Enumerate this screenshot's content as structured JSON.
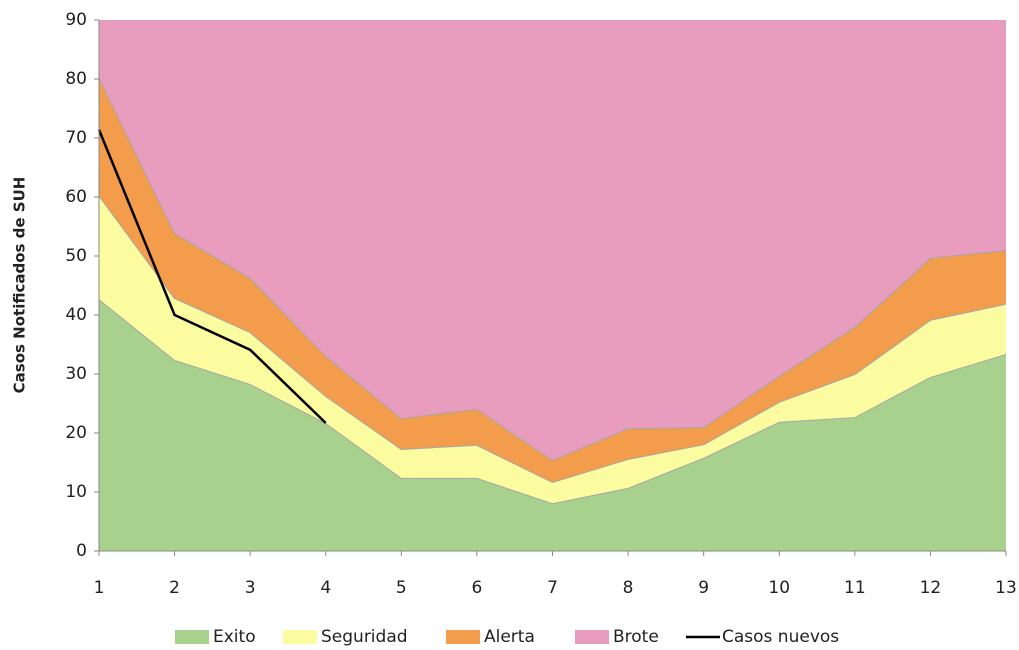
{
  "chart_data": {
    "type": "area",
    "stacked": true,
    "y_label": "Casos Notificados de SUH",
    "x": [
      1,
      2,
      3,
      4,
      5,
      6,
      7,
      8,
      9,
      10,
      11,
      12,
      13
    ],
    "xlim": [
      1,
      13
    ],
    "xticks": [
      1,
      2,
      3,
      4,
      5,
      6,
      7,
      8,
      9,
      10,
      11,
      12,
      13
    ],
    "ylim": [
      0,
      90
    ],
    "yticks": [
      0,
      10,
      20,
      30,
      40,
      50,
      60,
      70,
      80,
      90
    ],
    "series": [
      {
        "name": "Exito",
        "color": "#a9d18e",
        "values": [
          42.7,
          32.4,
          28.3,
          21.7,
          12.4,
          12.4,
          8.1,
          10.7,
          15.8,
          21.9,
          22.7,
          29.5,
          33.4
        ]
      },
      {
        "name": "Seguridad",
        "color": "#fbfba0",
        "values": [
          17.6,
          10.5,
          8.8,
          4.6,
          4.9,
          5.6,
          3.6,
          4.9,
          2.3,
          3.4,
          7.3,
          9.7,
          8.5
        ]
      },
      {
        "name": "Alerta",
        "color": "#f39c4b",
        "values": [
          20,
          11,
          9.2,
          6.8,
          5.2,
          6.1,
          3.7,
          5.2,
          2.9,
          4.4,
          8,
          10.5,
          9.1
        ]
      },
      {
        "name": "Brote",
        "color": "#e99dbe",
        "values": [
          9.7,
          36.1,
          43.7,
          56.9,
          67.5,
          65.9,
          74.6,
          69.2,
          69,
          60.3,
          52,
          40.3,
          39
        ]
      },
      {
        "name": "Casos nuevos",
        "type": "line",
        "color": "#000000",
        "values": [
          71.4,
          40,
          34.1,
          21.7,
          null,
          null,
          null,
          null,
          null,
          null,
          null,
          null,
          null
        ]
      }
    ]
  }
}
